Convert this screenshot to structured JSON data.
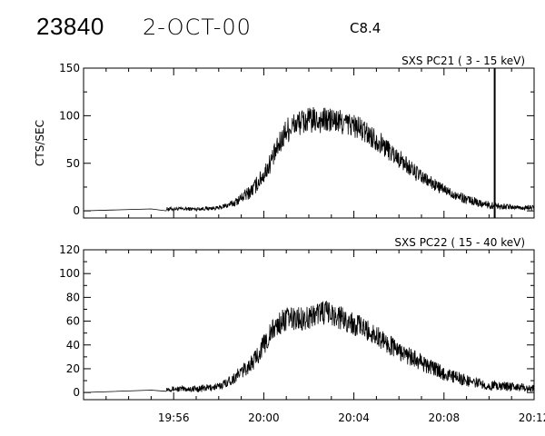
{
  "header": {
    "event_id": "23840",
    "date": "2-OCT-00",
    "flare_class": "C8.4"
  },
  "chart_data": [
    {
      "type": "line",
      "title": "SXS PC21  (  3 - 15 keV)",
      "ylabel": "CTS/SEC",
      "xlabel": "",
      "ylim": [
        0,
        150
      ],
      "yticks": [
        0,
        50,
        100,
        150
      ],
      "xlim": [
        "19:52",
        "20:12"
      ],
      "xticks": [
        "19:56",
        "20:00",
        "20:04",
        "20:08",
        "20:12"
      ],
      "show_x_tick_labels": false,
      "grid": false,
      "annotations": [
        {
          "type": "vertical-line",
          "x": "20:10:15"
        }
      ],
      "series": [
        {
          "x": [
            "19:52:00",
            "19:55:00",
            "19:55:40",
            "19:57:00",
            "19:58:00",
            "19:58:40",
            "19:59:30",
            "20:00:00",
            "20:00:30",
            "20:01:00",
            "20:01:30",
            "20:02:00",
            "20:03:00",
            "20:04:00",
            "20:05:00",
            "20:06:00",
            "20:07:00",
            "20:08:00",
            "20:09:00",
            "20:10:00",
            "20:11:00",
            "20:12:00"
          ],
          "values": [
            0,
            2,
            2,
            2,
            3,
            8,
            22,
            38,
            60,
            85,
            92,
            95,
            95,
            90,
            75,
            55,
            35,
            22,
            12,
            6,
            4,
            3
          ],
          "noise": [
            0,
            1,
            2,
            2,
            2,
            4,
            8,
            10,
            12,
            14,
            14,
            14,
            14,
            13,
            12,
            10,
            8,
            6,
            5,
            4,
            3,
            3
          ]
        }
      ]
    },
    {
      "type": "line",
      "title": "SXS PC22  ( 15 - 40 keV)",
      "ylabel": "",
      "xlabel": "",
      "ylim": [
        0,
        120
      ],
      "yticks": [
        0,
        20,
        40,
        60,
        80,
        100,
        120
      ],
      "xlim": [
        "19:52",
        "20:12"
      ],
      "xticks": [
        "19:56",
        "20:00",
        "20:04",
        "20:08",
        "20:12"
      ],
      "show_x_tick_labels": true,
      "grid": false,
      "annotations": [],
      "series": [
        {
          "x": [
            "19:52:00",
            "19:55:00",
            "19:55:40",
            "19:57:00",
            "19:58:00",
            "19:58:40",
            "19:59:30",
            "20:00:00",
            "20:00:30",
            "20:01:00",
            "20:01:30",
            "20:02:00",
            "20:02:30",
            "20:03:00",
            "20:04:00",
            "20:05:00",
            "20:06:00",
            "20:07:00",
            "20:08:00",
            "20:09:00",
            "20:10:00",
            "20:11:00",
            "20:12:00"
          ],
          "values": [
            0,
            2,
            3,
            3,
            5,
            12,
            25,
            40,
            55,
            62,
            62,
            63,
            68,
            66,
            58,
            48,
            35,
            25,
            16,
            10,
            6,
            5,
            3
          ],
          "noise": [
            0,
            2,
            2,
            3,
            3,
            5,
            7,
            9,
            10,
            10,
            10,
            10,
            11,
            10,
            10,
            9,
            8,
            7,
            6,
            5,
            4,
            4,
            3
          ]
        }
      ]
    }
  ]
}
